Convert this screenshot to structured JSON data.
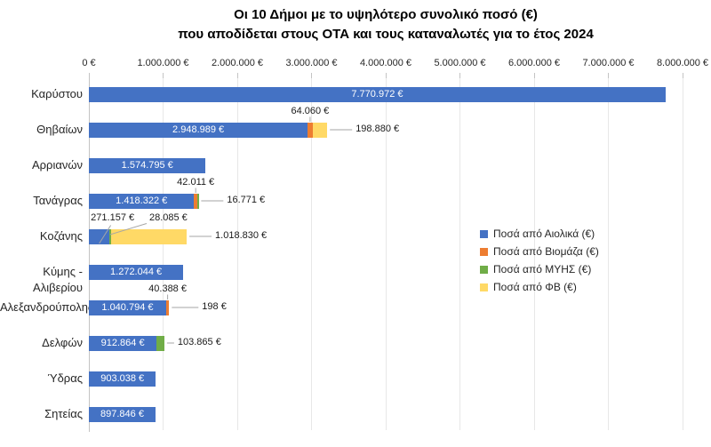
{
  "chart_data": {
    "type": "bar",
    "orientation": "horizontal",
    "stacked": true,
    "grid": "vertical",
    "legend_position": "middle-right",
    "title": "Οι 10 Δήμοι με το υψηλότερο συνολικό ποσό (€)",
    "subtitle": "που αποδίδεται στους ΟΤΑ και τους καταναλωτές για το έτος 2024",
    "categories": [
      "Καρύστου",
      "Θηβαίων",
      "Αρριανών",
      "Τανάγρας",
      "Κοζάνης",
      "Κύμης - Αλιβερίου",
      "Αλεξανδρούπολης",
      "Δελφών",
      "Ύδρας",
      "Σητείας"
    ],
    "series": [
      {
        "name": "Ποσά από Αιολικά (€)",
        "color": "#4472C4",
        "values": [
          7770972,
          2948989,
          1574795,
          1418322,
          271157,
          1272044,
          1040794,
          912864,
          903038,
          897846
        ]
      },
      {
        "name": "Ποσά από Βιομάζα (€)",
        "color": "#ED7D31",
        "values": [
          0,
          64060,
          0,
          42011,
          0,
          0,
          40388,
          0,
          0,
          0
        ]
      },
      {
        "name": "Ποσά από ΜΥΗΣ (€)",
        "color": "#70AD47",
        "values": [
          0,
          0,
          0,
          16771,
          28085,
          0,
          0,
          103865,
          0,
          0
        ]
      },
      {
        "name": "Ποσά από ΦΒ (€)",
        "color": "#FFD966",
        "values": [
          0,
          198880,
          0,
          0,
          1018830,
          0,
          198,
          0,
          0,
          0
        ]
      }
    ],
    "x_axis": {
      "min": 0,
      "max": 8000000,
      "step": 1000000,
      "tick_labels": [
        "0 €",
        "1.000.000 €",
        "2.000.000 €",
        "3.000.000 €",
        "4.000.000 €",
        "5.000.000 €",
        "6.000.000 €",
        "7.000.000 €",
        "8.000.000 €"
      ]
    },
    "data_labels": [
      {
        "row": 0,
        "series": 0,
        "text": "7.770.972 €",
        "placement": "inside"
      },
      {
        "row": 1,
        "series": 0,
        "text": "2.948.989 €",
        "placement": "inside"
      },
      {
        "row": 1,
        "series": 1,
        "text": "64.060 €",
        "placement": "above"
      },
      {
        "row": 1,
        "series": 3,
        "text": "198.880 €",
        "placement": "right"
      },
      {
        "row": 2,
        "series": 0,
        "text": "1.574.795 €",
        "placement": "inside"
      },
      {
        "row": 3,
        "series": 0,
        "text": "1.418.322 €",
        "placement": "inside"
      },
      {
        "row": 3,
        "series": 1,
        "text": "42.011 €",
        "placement": "above"
      },
      {
        "row": 3,
        "series": 2,
        "text": "16.771 €",
        "placement": "right"
      },
      {
        "row": 4,
        "series": 0,
        "text": "271.157 €",
        "placement": "above-left"
      },
      {
        "row": 4,
        "series": 2,
        "text": "28.085 €",
        "placement": "above-offset"
      },
      {
        "row": 4,
        "series": 3,
        "text": "1.018.830 €",
        "placement": "right"
      },
      {
        "row": 5,
        "series": 0,
        "text": "1.272.044 €",
        "placement": "inside"
      },
      {
        "row": 6,
        "series": 0,
        "text": "1.040.794 €",
        "placement": "inside"
      },
      {
        "row": 6,
        "series": 1,
        "text": "40.388 €",
        "placement": "above"
      },
      {
        "row": 6,
        "series": 3,
        "text": "198 €",
        "placement": "right",
        "leader": 30
      },
      {
        "row": 7,
        "series": 0,
        "text": "912.864 €",
        "placement": "inside"
      },
      {
        "row": 7,
        "series": 2,
        "text": "103.865 €",
        "placement": "right",
        "leader": 8
      },
      {
        "row": 8,
        "series": 0,
        "text": "903.038 €",
        "placement": "inside"
      },
      {
        "row": 9,
        "series": 0,
        "text": "897.846 €",
        "placement": "inside"
      }
    ],
    "colors": {
      "gridline": "#E7E7E7",
      "axis": "#C4C4C4",
      "leader_line": "#A6A6A6",
      "inside_label": "#FFFFFF",
      "outside_label": "#1A1A1A"
    }
  }
}
